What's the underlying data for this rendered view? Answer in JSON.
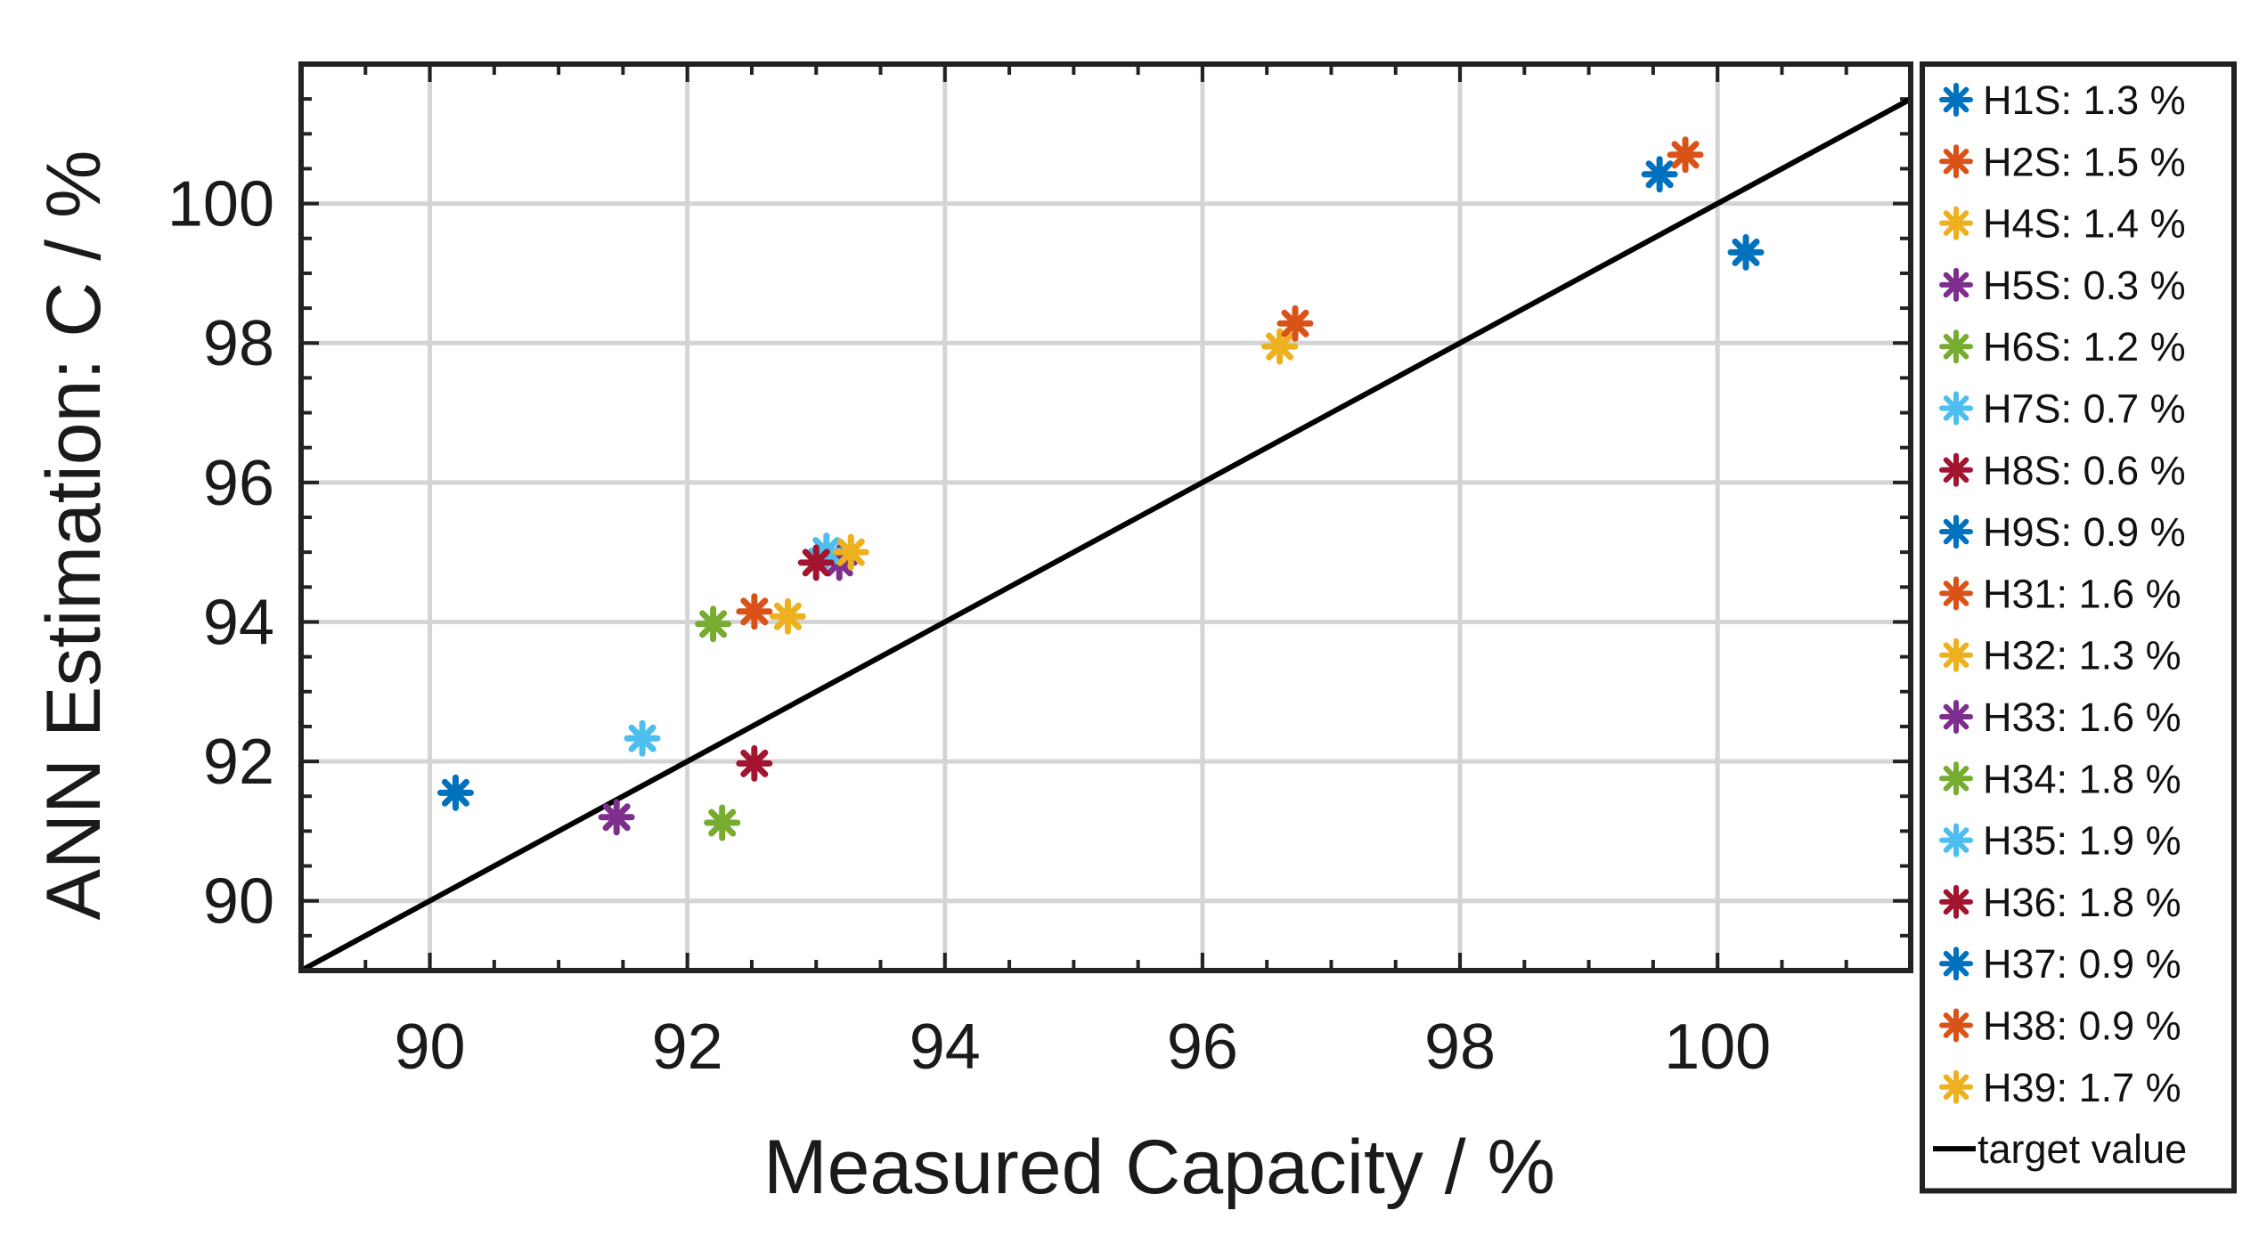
{
  "chart_data": {
    "type": "scatter",
    "title": "",
    "xlabel": "Measured Capacity / %",
    "ylabel": "ANN Estimation: C / %",
    "xlim": [
      89,
      101.5
    ],
    "ylim": [
      89,
      102
    ],
    "xticks": [
      90,
      92,
      94,
      96,
      98,
      100
    ],
    "yticks": [
      90,
      92,
      94,
      96,
      98,
      100
    ],
    "grid": true,
    "legend_position": "right-outside",
    "series": [
      {
        "name": "H1S: 1.3 %",
        "color": "#0072BD",
        "points": [
          [
            99.55,
            100.42
          ]
        ]
      },
      {
        "name": "H2S: 1.5 %",
        "color": "#D95319",
        "points": [
          [
            99.75,
            100.7
          ]
        ]
      },
      {
        "name": "H4S: 1.4 %",
        "color": "#EDB120",
        "points": [
          [
            96.6,
            97.95
          ]
        ]
      },
      {
        "name": "H5S: 0.3 %",
        "color": "#7E2F8E",
        "points": [
          [
            91.45,
            91.2
          ]
        ]
      },
      {
        "name": "H6S: 1.2 %",
        "color": "#77AC30",
        "points": [
          [
            92.2,
            93.97
          ]
        ]
      },
      {
        "name": "H7S: 0.7 %",
        "color": "#4DBEEE",
        "points": [
          [
            91.65,
            92.33
          ]
        ]
      },
      {
        "name": "H8S: 0.6 %",
        "color": "#A2142F",
        "points": [
          [
            92.52,
            91.97
          ]
        ]
      },
      {
        "name": "H9S: 0.9 %",
        "color": "#0072BD",
        "points": [
          [
            100.22,
            99.3
          ]
        ]
      },
      {
        "name": "H31: 1.6 %",
        "color": "#D95319",
        "points": [
          [
            96.72,
            98.28
          ]
        ]
      },
      {
        "name": "H32: 1.3 %",
        "color": "#EDB120",
        "points": [
          [
            92.78,
            94.08
          ]
        ]
      },
      {
        "name": "H33: 1.6 %",
        "color": "#7E2F8E",
        "points": [
          [
            93.18,
            94.85
          ]
        ]
      },
      {
        "name": "H34: 1.8 %",
        "color": "#77AC30",
        "points": [
          [
            92.27,
            91.12
          ]
        ]
      },
      {
        "name": "H35: 1.9 %",
        "color": "#4DBEEE",
        "points": [
          [
            93.08,
            95.02
          ]
        ]
      },
      {
        "name": "H36: 1.8 %",
        "color": "#A2142F",
        "points": [
          [
            93.0,
            94.85
          ]
        ]
      },
      {
        "name": "H37: 0.9 %",
        "color": "#0072BD",
        "points": [
          [
            90.2,
            91.55
          ]
        ]
      },
      {
        "name": "H38: 0.9 %",
        "color": "#D95319",
        "points": [
          [
            92.52,
            94.15
          ]
        ]
      },
      {
        "name": "H39: 1.7 %",
        "color": "#EDB120",
        "points": [
          [
            93.27,
            95.0
          ]
        ]
      }
    ],
    "reference_line": {
      "name": "target value",
      "color": "#000000",
      "x": [
        89,
        101.5
      ],
      "y": [
        89,
        101.5
      ]
    }
  }
}
